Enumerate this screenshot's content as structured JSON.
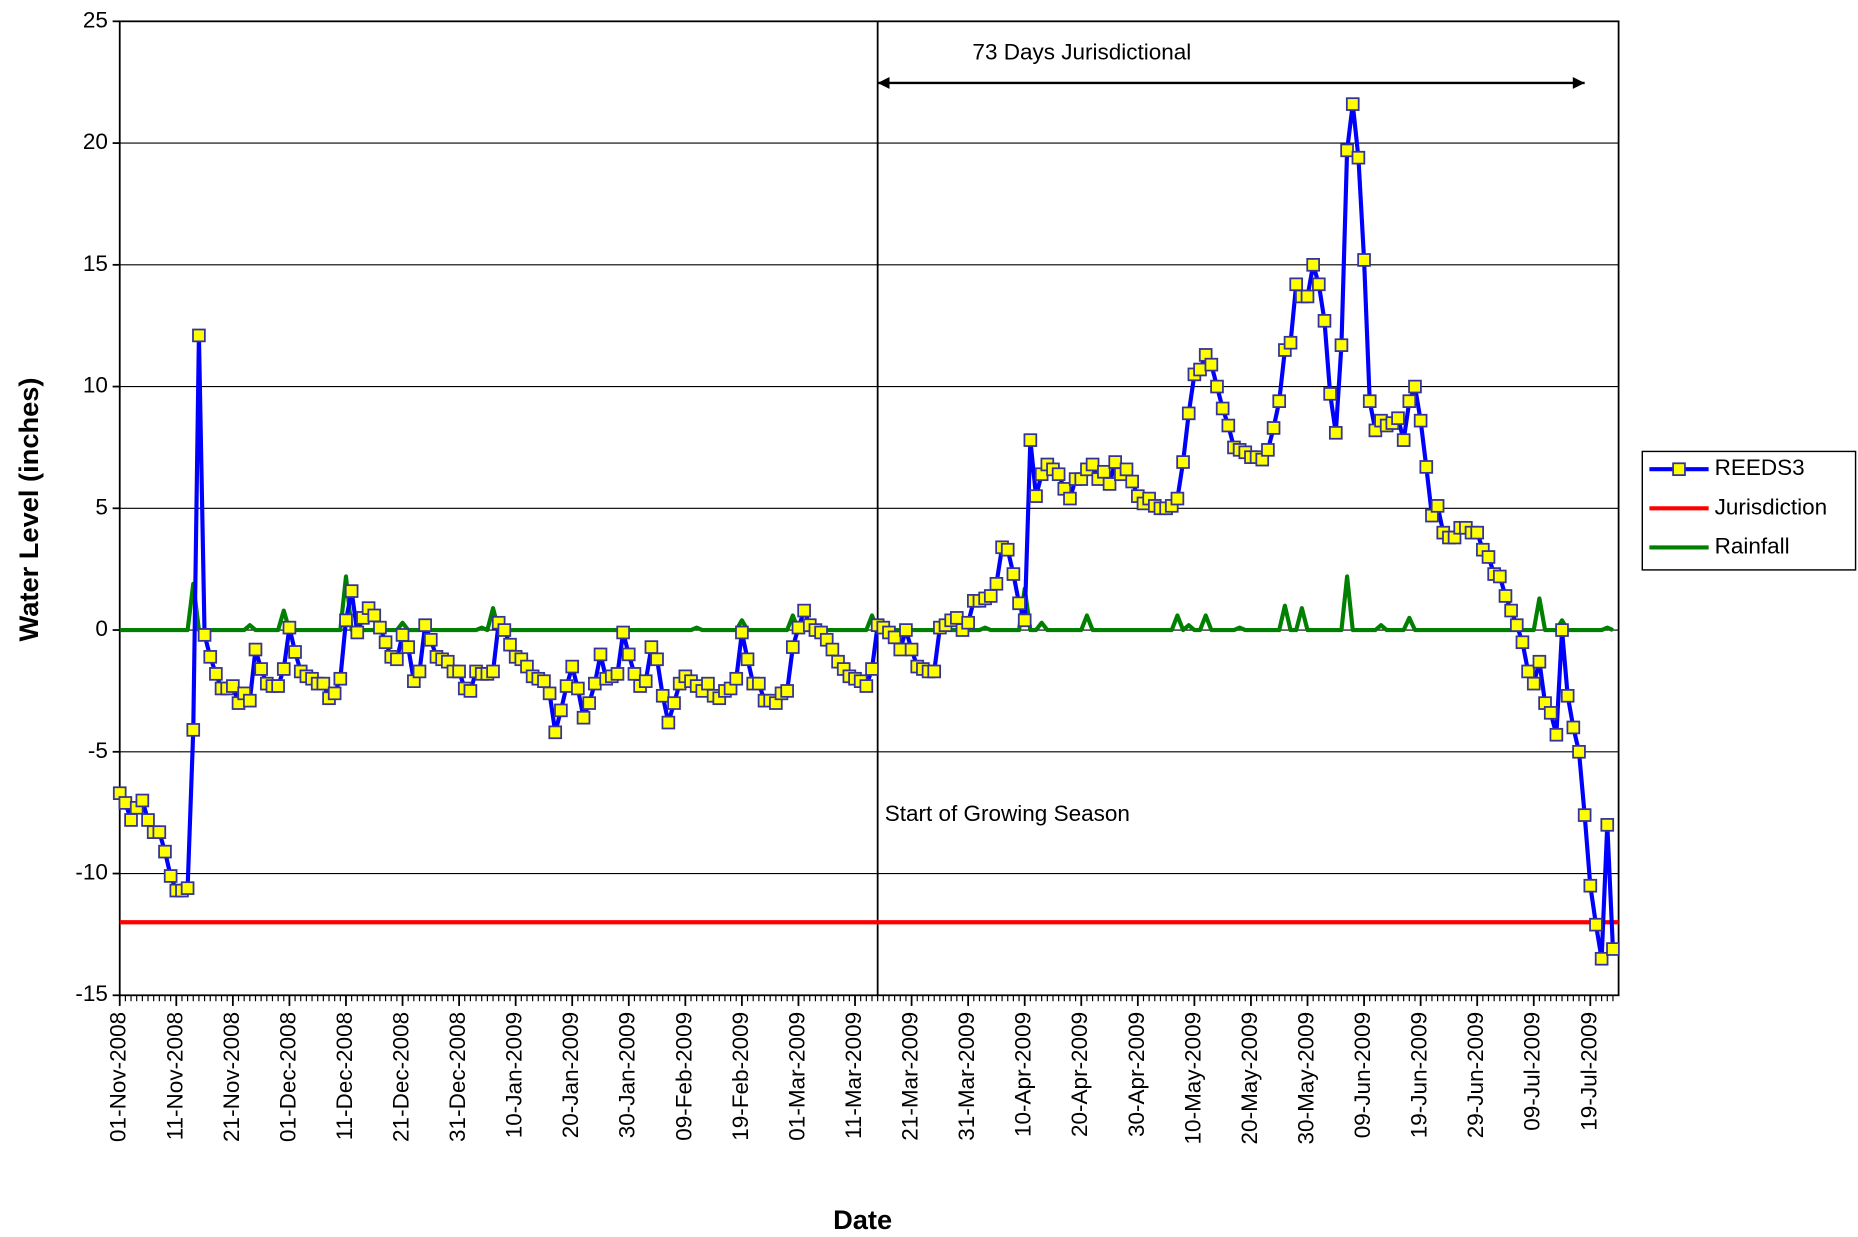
{
  "chart_data": {
    "type": "line",
    "x_label": "Date",
    "y_label": "Water Level (inches)",
    "xlim": [
      "01-Nov-2008",
      "24-Jul-2009"
    ],
    "xticks": [
      "01-Nov-2008",
      "11-Nov-2008",
      "21-Nov-2008",
      "01-Dec-2008",
      "11-Dec-2008",
      "21-Dec-2008",
      "31-Dec-2008",
      "10-Jan-2009",
      "20-Jan-2009",
      "30-Jan-2009",
      "09-Feb-2009",
      "19-Feb-2009",
      "01-Mar-2009",
      "11-Mar-2009",
      "21-Mar-2009",
      "31-Mar-2009",
      "10-Apr-2009",
      "20-Apr-2009",
      "30-Apr-2009",
      "10-May-2009",
      "20-May-2009",
      "30-May-2009",
      "09-Jun-2009",
      "19-Jun-2009",
      "29-Jun-2009",
      "09-Jul-2009",
      "19-Jul-2009"
    ],
    "ylim": [
      -15,
      25
    ],
    "yticks": [
      -15,
      -10,
      -5,
      0,
      5,
      10,
      15,
      20,
      25
    ],
    "grid": true,
    "legend": "right",
    "x": [
      "01-Nov-2008",
      "02-Nov-2008",
      "03-Nov-2008",
      "04-Nov-2008",
      "05-Nov-2008",
      "06-Nov-2008",
      "07-Nov-2008",
      "08-Nov-2008",
      "09-Nov-2008",
      "10-Nov-2008",
      "11-Nov-2008",
      "12-Nov-2008",
      "13-Nov-2008",
      "14-Nov-2008",
      "15-Nov-2008",
      "16-Nov-2008",
      "17-Nov-2008",
      "18-Nov-2008",
      "19-Nov-2008",
      "20-Nov-2008",
      "21-Nov-2008",
      "22-Nov-2008",
      "23-Nov-2008",
      "24-Nov-2008",
      "25-Nov-2008",
      "26-Nov-2008",
      "27-Nov-2008",
      "28-Nov-2008",
      "29-Nov-2008",
      "30-Nov-2008",
      "01-Dec-2008",
      "02-Dec-2008",
      "03-Dec-2008",
      "04-Dec-2008",
      "05-Dec-2008",
      "06-Dec-2008",
      "07-Dec-2008",
      "08-Dec-2008",
      "09-Dec-2008",
      "10-Dec-2008",
      "11-Dec-2008",
      "12-Dec-2008",
      "13-Dec-2008",
      "14-Dec-2008",
      "15-Dec-2008",
      "16-Dec-2008",
      "17-Dec-2008",
      "18-Dec-2008",
      "19-Dec-2008",
      "20-Dec-2008",
      "21-Dec-2008",
      "22-Dec-2008",
      "23-Dec-2008",
      "24-Dec-2008",
      "25-Dec-2008",
      "26-Dec-2008",
      "27-Dec-2008",
      "28-Dec-2008",
      "29-Dec-2008",
      "30-Dec-2008",
      "31-Dec-2008",
      "01-Jan-2009",
      "02-Jan-2009",
      "03-Jan-2009",
      "04-Jan-2009",
      "05-Jan-2009",
      "06-Jan-2009",
      "07-Jan-2009",
      "08-Jan-2009",
      "09-Jan-2009",
      "10-Jan-2009",
      "11-Jan-2009",
      "12-Jan-2009",
      "13-Jan-2009",
      "14-Jan-2009",
      "15-Jan-2009",
      "16-Jan-2009",
      "17-Jan-2009",
      "18-Jan-2009",
      "19-Jan-2009",
      "20-Jan-2009",
      "21-Jan-2009",
      "22-Jan-2009",
      "23-Jan-2009",
      "24-Jan-2009",
      "25-Jan-2009",
      "26-Jan-2009",
      "27-Jan-2009",
      "28-Jan-2009",
      "29-Jan-2009",
      "30-Jan-2009",
      "31-Jan-2009",
      "01-Feb-2009",
      "02-Feb-2009",
      "03-Feb-2009",
      "04-Feb-2009",
      "05-Feb-2009",
      "06-Feb-2009",
      "07-Feb-2009",
      "08-Feb-2009",
      "09-Feb-2009",
      "10-Feb-2009",
      "11-Feb-2009",
      "12-Feb-2009",
      "13-Feb-2009",
      "14-Feb-2009",
      "15-Feb-2009",
      "16-Feb-2009",
      "17-Feb-2009",
      "18-Feb-2009",
      "19-Feb-2009",
      "20-Feb-2009",
      "21-Feb-2009",
      "22-Feb-2009",
      "23-Feb-2009",
      "24-Feb-2009",
      "25-Feb-2009",
      "26-Feb-2009",
      "27-Feb-2009",
      "28-Feb-2009",
      "01-Mar-2009",
      "02-Mar-2009",
      "03-Mar-2009",
      "04-Mar-2009",
      "05-Mar-2009",
      "06-Mar-2009",
      "07-Mar-2009",
      "08-Mar-2009",
      "09-Mar-2009",
      "10-Mar-2009",
      "11-Mar-2009",
      "12-Mar-2009",
      "13-Mar-2009",
      "14-Mar-2009",
      "15-Mar-2009",
      "16-Mar-2009",
      "17-Mar-2009",
      "18-Mar-2009",
      "19-Mar-2009",
      "20-Mar-2009",
      "21-Mar-2009",
      "22-Mar-2009",
      "23-Mar-2009",
      "24-Mar-2009",
      "25-Mar-2009",
      "26-Mar-2009",
      "27-Mar-2009",
      "28-Mar-2009",
      "29-Mar-2009",
      "30-Mar-2009",
      "31-Mar-2009",
      "01-Apr-2009",
      "02-Apr-2009",
      "03-Apr-2009",
      "04-Apr-2009",
      "05-Apr-2009",
      "06-Apr-2009",
      "07-Apr-2009",
      "08-Apr-2009",
      "09-Apr-2009",
      "10-Apr-2009",
      "11-Apr-2009",
      "12-Apr-2009",
      "13-Apr-2009",
      "14-Apr-2009",
      "15-Apr-2009",
      "16-Apr-2009",
      "17-Apr-2009",
      "18-Apr-2009",
      "19-Apr-2009",
      "20-Apr-2009",
      "21-Apr-2009",
      "22-Apr-2009",
      "23-Apr-2009",
      "24-Apr-2009",
      "25-Apr-2009",
      "26-Apr-2009",
      "27-Apr-2009",
      "28-Apr-2009",
      "29-Apr-2009",
      "30-Apr-2009",
      "01-May-2009",
      "02-May-2009",
      "03-May-2009",
      "04-May-2009",
      "05-May-2009",
      "06-May-2009",
      "07-May-2009",
      "08-May-2009",
      "09-May-2009",
      "10-May-2009",
      "11-May-2009",
      "12-May-2009",
      "13-May-2009",
      "14-May-2009",
      "15-May-2009",
      "16-May-2009",
      "17-May-2009",
      "18-May-2009",
      "19-May-2009",
      "20-May-2009",
      "21-May-2009",
      "22-May-2009",
      "23-May-2009",
      "24-May-2009",
      "25-May-2009",
      "26-May-2009",
      "27-May-2009",
      "28-May-2009",
      "29-May-2009",
      "30-May-2009",
      "31-May-2009",
      "01-Jun-2009",
      "02-Jun-2009",
      "03-Jun-2009",
      "04-Jun-2009",
      "05-Jun-2009",
      "06-Jun-2009",
      "07-Jun-2009",
      "08-Jun-2009",
      "09-Jun-2009",
      "10-Jun-2009",
      "11-Jun-2009",
      "12-Jun-2009",
      "13-Jun-2009",
      "14-Jun-2009",
      "15-Jun-2009",
      "16-Jun-2009",
      "17-Jun-2009",
      "18-Jun-2009",
      "19-Jun-2009",
      "20-Jun-2009",
      "21-Jun-2009",
      "22-Jun-2009",
      "23-Jun-2009",
      "24-Jun-2009",
      "25-Jun-2009",
      "26-Jun-2009",
      "27-Jun-2009",
      "28-Jun-2009",
      "29-Jun-2009",
      "30-Jun-2009",
      "01-Jul-2009",
      "02-Jul-2009",
      "03-Jul-2009",
      "04-Jul-2009",
      "05-Jul-2009",
      "06-Jul-2009",
      "07-Jul-2009",
      "08-Jul-2009",
      "09-Jul-2009",
      "10-Jul-2009",
      "11-Jul-2009",
      "12-Jul-2009",
      "13-Jul-2009",
      "14-Jul-2009",
      "15-Jul-2009",
      "16-Jul-2009",
      "17-Jul-2009",
      "18-Jul-2009",
      "19-Jul-2009",
      "20-Jul-2009",
      "21-Jul-2009",
      "22-Jul-2009",
      "23-Jul-2009"
    ],
    "series": [
      {
        "name": "REEDS3",
        "color": "#0000ff",
        "marker": "square",
        "marker_color": "#ffff00",
        "marker_edge": "#333399",
        "values": [
          -6.7,
          -7.1,
          -7.8,
          -7.3,
          -7.0,
          -7.8,
          -8.3,
          -8.3,
          -9.1,
          -10.1,
          -10.7,
          -10.7,
          -10.6,
          -4.1,
          12.1,
          -0.2,
          -1.1,
          -1.8,
          -2.4,
          -2.4,
          -2.3,
          -3.0,
          -2.6,
          -2.9,
          -0.8,
          -1.6,
          -2.2,
          -2.3,
          -2.3,
          -1.6,
          0.1,
          -0.9,
          -1.7,
          -1.9,
          -2.0,
          -2.2,
          -2.2,
          -2.8,
          -2.6,
          -2.0,
          0.4,
          1.6,
          -0.1,
          0.5,
          0.9,
          0.6,
          0.1,
          -0.5,
          -1.1,
          -1.2,
          -0.2,
          -0.7,
          -2.1,
          -1.7,
          0.2,
          -0.4,
          -1.1,
          -1.2,
          -1.3,
          -1.7,
          -1.7,
          -2.4,
          -2.5,
          -1.7,
          -1.8,
          -1.8,
          -1.7,
          0.3,
          0.0,
          -0.6,
          -1.1,
          -1.2,
          -1.5,
          -1.9,
          -2.0,
          -2.1,
          -2.6,
          -4.2,
          -3.3,
          -2.3,
          -1.5,
          -2.4,
          -3.6,
          -3.0,
          -2.2,
          -1.0,
          -2.0,
          -1.9,
          -1.8,
          -0.1,
          -1.0,
          -1.8,
          -2.3,
          -2.1,
          -0.7,
          -1.2,
          -2.7,
          -3.8,
          -3.0,
          -2.2,
          -1.9,
          -2.1,
          -2.3,
          -2.5,
          -2.2,
          -2.7,
          -2.8,
          -2.5,
          -2.4,
          -2.0,
          -0.1,
          -1.2,
          -2.2,
          -2.2,
          -2.9,
          -2.9,
          -3.0,
          -2.6,
          -2.5,
          -0.7,
          0.1,
          0.8,
          0.2,
          0.0,
          -0.1,
          -0.4,
          -0.8,
          -1.3,
          -1.6,
          -1.9,
          -2.0,
          -2.1,
          -2.3,
          -1.6,
          0.2,
          0.1,
          -0.1,
          -0.3,
          -0.8,
          0.0,
          -0.8,
          -1.5,
          -1.6,
          -1.7,
          -1.7,
          0.1,
          0.2,
          0.4,
          0.5,
          0.0,
          0.3,
          1.2,
          1.2,
          1.3,
          1.4,
          1.9,
          3.4,
          3.3,
          2.3,
          1.1,
          0.4,
          7.8,
          5.5,
          6.4,
          6.8,
          6.6,
          6.4,
          5.8,
          5.4,
          6.2,
          6.2,
          6.6,
          6.8,
          6.2,
          6.5,
          6.0,
          6.9,
          6.4,
          6.6,
          6.1,
          5.5,
          5.2,
          5.4,
          5.1,
          5.0,
          5.0,
          5.1,
          5.4,
          6.9,
          8.9,
          10.5,
          10.7,
          11.3,
          10.9,
          10.0,
          9.1,
          8.4,
          7.5,
          7.4,
          7.3,
          7.1,
          7.1,
          7.0,
          7.4,
          8.3,
          9.4,
          11.5,
          11.8,
          14.2,
          13.7,
          13.7,
          15.0,
          14.2,
          12.7,
          9.7,
          8.1,
          11.7,
          19.7,
          21.6,
          19.4,
          15.2,
          9.4,
          8.2,
          8.6,
          8.4,
          8.5,
          8.7,
          7.8,
          9.4,
          10.0,
          8.6,
          6.7,
          4.7,
          5.1,
          4.0,
          3.8,
          3.8,
          4.2,
          4.2,
          4.0,
          4.0,
          3.3,
          3.0,
          2.3,
          2.2,
          1.4,
          0.8,
          0.2,
          -0.5,
          -1.7,
          -2.2,
          -1.3,
          -3.0,
          -3.4,
          -4.3,
          0.0,
          -2.7,
          -4.0,
          -5.0,
          -7.6,
          -10.5,
          -12.1,
          -13.5,
          -8.0,
          -13.1
        ]
      },
      {
        "name": "Jurisdiction",
        "color": "#ff0000",
        "x": [
          "01-Nov-2008",
          "24-Jul-2009"
        ],
        "values": [
          -12,
          -12
        ]
      },
      {
        "name": "Rainfall",
        "color": "#008000",
        "values": [
          0,
          0,
          0,
          0,
          0,
          0,
          0,
          0,
          0,
          0,
          0,
          0,
          0,
          1.9,
          0,
          0,
          0,
          0,
          0,
          0,
          0,
          0,
          0,
          0.2,
          0,
          0,
          0,
          0,
          0,
          0.8,
          0,
          0,
          0,
          0,
          0,
          0,
          0,
          0,
          0,
          0,
          2.2,
          0,
          0,
          0,
          0,
          0,
          0,
          0,
          0,
          0,
          0.3,
          0,
          0,
          0,
          0,
          0,
          0,
          0,
          0,
          0,
          0,
          0,
          0,
          0,
          0.1,
          0,
          0.9,
          0,
          0,
          0,
          0,
          0,
          0,
          0,
          0,
          0,
          0,
          0,
          0,
          0,
          0,
          0,
          0,
          0,
          0,
          0,
          0,
          0,
          0,
          0,
          0,
          0,
          0,
          0,
          0,
          0,
          0,
          0,
          0,
          0,
          0,
          0,
          0.1,
          0,
          0,
          0,
          0,
          0,
          0,
          0,
          0.4,
          0,
          0,
          0,
          0,
          0,
          0,
          0,
          0,
          0.6,
          0,
          0,
          0,
          0,
          0,
          0,
          0,
          0,
          0,
          0,
          0,
          0,
          0,
          0.6,
          0,
          0,
          0,
          0,
          0,
          0,
          0,
          0,
          0,
          0,
          0,
          0,
          0,
          0,
          0,
          0,
          0,
          0,
          0,
          0.1,
          0,
          0,
          0,
          0,
          0,
          0,
          1.7,
          0,
          0,
          0.3,
          0,
          0,
          0,
          0,
          0,
          0,
          0,
          0.6,
          0,
          0,
          0,
          0,
          0,
          0,
          0,
          0,
          0,
          0,
          0,
          0,
          0,
          0,
          0,
          0.6,
          0,
          0.2,
          0,
          0,
          0.6,
          0,
          0,
          0,
          0,
          0,
          0.1,
          0,
          0,
          0,
          0,
          0,
          0,
          0,
          1.0,
          0,
          0,
          0.9,
          0,
          0,
          0,
          0,
          0,
          0,
          0,
          2.2,
          0,
          0,
          0,
          0,
          0,
          0.2,
          0,
          0,
          0,
          0,
          0.5,
          0,
          0,
          0,
          0,
          0,
          0,
          0,
          0,
          0,
          0,
          0,
          0,
          0,
          0,
          0,
          0,
          0,
          0,
          0,
          0,
          0,
          0,
          1.3,
          0,
          0,
          0,
          0.4,
          0,
          0,
          0,
          0,
          0,
          0,
          0,
          0.1,
          0
        ]
      }
    ],
    "growing_season_start": {
      "x": "15-Mar-2009",
      "text": "Start of Growing Season"
    },
    "jurisdictional_span": {
      "x_start": "15-Mar-2009",
      "x_end": "18-Jul-2009",
      "text": "73 Days Jurisdictional"
    }
  }
}
